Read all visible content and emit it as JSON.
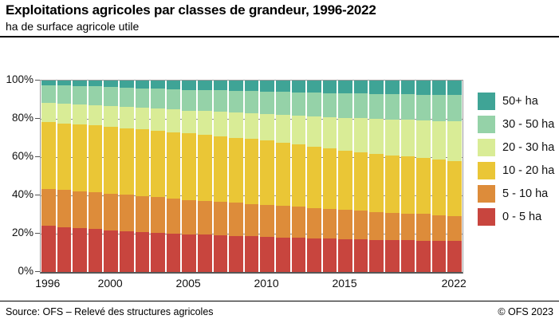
{
  "header": {
    "title": "Exploitations agricoles par classes de grandeur, 1996-2022",
    "subtitle": "ha de surface agricole utile"
  },
  "footer": {
    "source": "Source: OFS – Relevé des structures agricoles",
    "copyright": "© OFS 2023"
  },
  "chart_data": {
    "type": "bar",
    "stacked": true,
    "normalized_percent": true,
    "title": "Exploitations agricoles par classes de grandeur, 1996-2022",
    "subtitle": "ha de surface agricole utile",
    "xlabel": "",
    "ylabel": "",
    "ylim": [
      0,
      100
    ],
    "grid": true,
    "legend_position": "right",
    "years": [
      1996,
      1997,
      1998,
      1999,
      2000,
      2001,
      2002,
      2003,
      2004,
      2005,
      2006,
      2007,
      2008,
      2009,
      2010,
      2011,
      2012,
      2013,
      2014,
      2015,
      2016,
      2017,
      2018,
      2019,
      2020,
      2021,
      2022
    ],
    "series": [
      {
        "name": "0 - 5 ha",
        "slug": "0-5",
        "color": "#c8453e",
        "values": [
          24.0,
          23.4,
          22.9,
          22.3,
          21.7,
          21.3,
          20.9,
          20.5,
          20.1,
          19.7,
          19.4,
          19.1,
          18.9,
          18.6,
          18.3,
          18.1,
          17.8,
          17.6,
          17.3,
          17.1,
          17.0,
          16.8,
          16.7,
          16.5,
          16.4,
          16.2,
          16.1
        ]
      },
      {
        "name": "5 - 10 ha",
        "slug": "5-10",
        "color": "#dd8c3a",
        "values": [
          19.3,
          19.3,
          19.2,
          19.2,
          19.2,
          19.0,
          18.7,
          18.5,
          18.2,
          18.0,
          17.8,
          17.5,
          17.3,
          17.0,
          16.8,
          16.5,
          16.2,
          15.8,
          15.5,
          15.2,
          14.9,
          14.6,
          14.3,
          14.1,
          13.8,
          13.5,
          13.2
        ]
      },
      {
        "name": "10 - 20 ha",
        "slug": "10-20",
        "color": "#eac636",
        "values": [
          34.9,
          34.9,
          34.9,
          35.0,
          35.0,
          34.9,
          34.8,
          34.8,
          34.7,
          34.6,
          34.4,
          34.3,
          34.0,
          33.9,
          33.7,
          33.0,
          32.5,
          32.1,
          31.6,
          30.9,
          30.6,
          30.3,
          30.0,
          29.7,
          29.4,
          29.1,
          28.8
        ]
      },
      {
        "name": "20 - 30 ha",
        "slug": "20-30",
        "color": "#d9ec96",
        "values": [
          10.0,
          10.2,
          10.4,
          10.6,
          10.8,
          11.0,
          11.3,
          11.5,
          11.8,
          12.0,
          12.4,
          12.8,
          13.1,
          13.5,
          13.9,
          14.6,
          15.3,
          15.9,
          16.6,
          17.3,
          17.8,
          18.2,
          18.7,
          19.2,
          19.7,
          20.1,
          20.6
        ]
      },
      {
        "name": "30 - 50 ha",
        "slug": "30-50",
        "color": "#95d2a8",
        "values": [
          9.5,
          9.6,
          9.7,
          9.8,
          9.9,
          10.1,
          10.3,
          10.5,
          10.7,
          10.9,
          11.0,
          11.1,
          11.3,
          11.4,
          11.5,
          11.8,
          12.0,
          12.3,
          12.5,
          12.8,
          12.9,
          13.1,
          13.2,
          13.3,
          13.4,
          13.6,
          13.7
        ]
      },
      {
        "name": "50+ ha",
        "slug": "50plus",
        "color": "#3fa496",
        "values": [
          2.3,
          2.6,
          2.9,
          3.1,
          3.4,
          3.7,
          4.0,
          4.2,
          4.5,
          4.8,
          5.0,
          5.2,
          5.4,
          5.6,
          5.8,
          6.0,
          6.2,
          6.3,
          6.5,
          6.7,
          6.8,
          7.0,
          7.1,
          7.2,
          7.3,
          7.5,
          7.6
        ]
      }
    ],
    "legend": [
      "50+ ha",
      "30 - 50 ha",
      "20 - 30 ha",
      "10 - 20 ha",
      "5 - 10 ha",
      "0 - 5 ha"
    ],
    "y_ticks": [
      {
        "value": 100,
        "label": "100%"
      },
      {
        "value": 80,
        "label": "80%"
      },
      {
        "value": 60,
        "label": "60%"
      },
      {
        "value": 40,
        "label": "40%"
      },
      {
        "value": 20,
        "label": "20%"
      },
      {
        "value": 0,
        "label": "0%"
      }
    ],
    "gridline_values": [
      20,
      40,
      60,
      80
    ],
    "x_ticks": [
      {
        "label": "1996",
        "index": 0
      },
      {
        "label": "2000",
        "index": 4
      },
      {
        "label": "2005",
        "index": 9
      },
      {
        "label": "2010",
        "index": 14
      },
      {
        "label": "2015",
        "index": 19
      },
      {
        "label": "2022",
        "index": 26
      }
    ]
  }
}
